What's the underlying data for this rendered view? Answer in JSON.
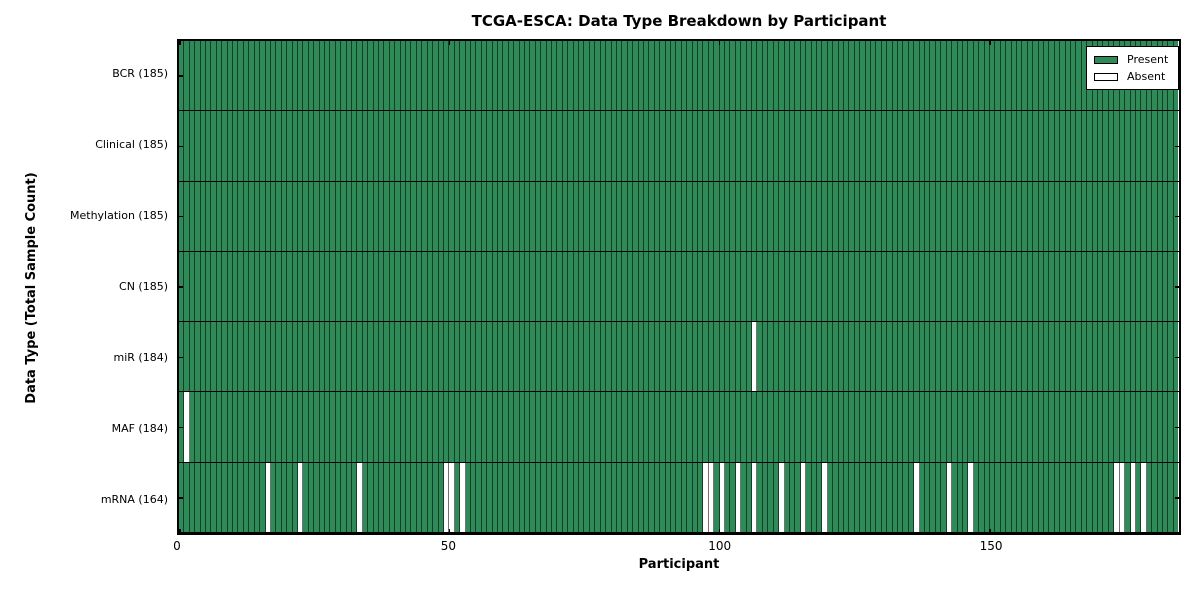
{
  "chart_data": {
    "type": "heatmap",
    "title": "TCGA-ESCA: Data Type Breakdown by Participant",
    "xlabel": "Participant",
    "ylabel": "Data Type (Total Sample Count)",
    "n_participants": 185,
    "x_ticks": [
      0,
      50,
      100,
      150
    ],
    "x_range": [
      0,
      185
    ],
    "grid": "cell-borders",
    "legend_position": "upper-right",
    "colors": {
      "present": "#2e8b57",
      "absent": "#ffffff",
      "cell_border": "rgba(0,0,0,0.55)",
      "frame": "#000000"
    },
    "legend": [
      {
        "label": "Present",
        "color": "#2e8b57"
      },
      {
        "label": "Absent",
        "color": "#ffffff"
      }
    ],
    "rows": [
      {
        "label": "BCR (185)",
        "data_type": "BCR",
        "total": 185,
        "absent_participants": []
      },
      {
        "label": "Clinical (185)",
        "data_type": "Clinical",
        "total": 185,
        "absent_participants": []
      },
      {
        "label": "Methylation (185)",
        "data_type": "Methylation",
        "total": 185,
        "absent_participants": []
      },
      {
        "label": "CN (185)",
        "data_type": "CN",
        "total": 185,
        "absent_participants": []
      },
      {
        "label": "miR (184)",
        "data_type": "miR",
        "total": 184,
        "absent_participants": [
          106
        ]
      },
      {
        "label": "MAF (184)",
        "data_type": "MAF",
        "total": 184,
        "absent_participants": [
          1
        ]
      },
      {
        "label": "mRNA (164)",
        "data_type": "mRNA",
        "total": 164,
        "absent_participants": [
          16,
          22,
          33,
          49,
          50,
          52,
          97,
          98,
          100,
          103,
          106,
          111,
          115,
          119,
          136,
          142,
          146,
          173,
          174,
          176,
          178
        ]
      }
    ]
  }
}
